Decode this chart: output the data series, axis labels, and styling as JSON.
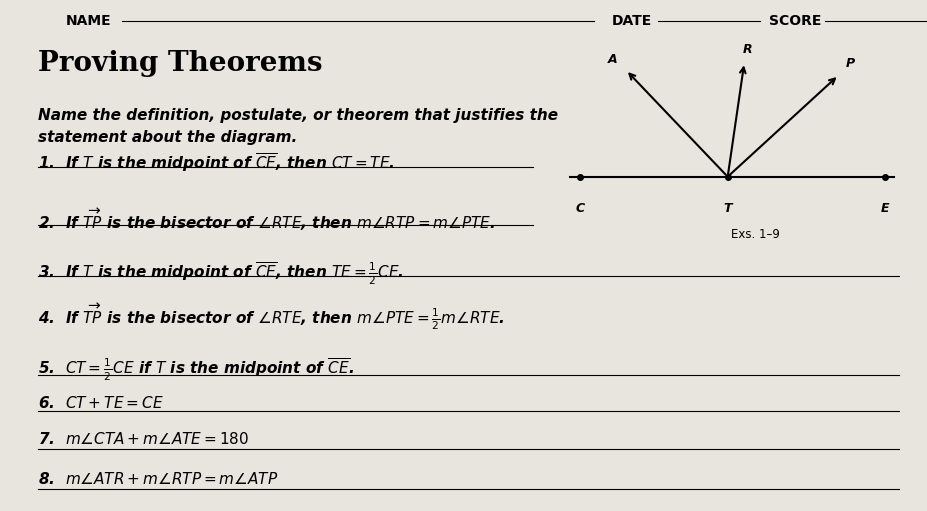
{
  "bg_color": "#e8e4de",
  "title": "Proving Theorems",
  "header_name": "NAME",
  "header_date": "DATE",
  "header_score": "SCORE",
  "instruction": "Name the definition, postulate, or theorem that justifies the\nstatement about the diagram.",
  "items": [
    "1.  If $T$ is the midpoint of $\\overline{CE}$, then $CT = TE$.",
    "2.  If $\\overrightarrow{TP}$ is the bisector of $\\angle RTE$, then $m\\angle RTP = m\\angle PTE$.",
    "3.  If $T$ is the midpoint of $\\overline{CE}$, then $TE = \\frac{1}{2}CE$.",
    "4.  If $\\overrightarrow{TP}$ is the bisector of $\\angle RTE$, then $m\\angle PTE = \\frac{1}{2}m\\angle RTE$.",
    "5.  $CT = \\frac{1}{2}CE$ if $T$ is the midpoint of $\\overline{CE}$.",
    "6.  $CT + TE = CE$",
    "7.  $m\\angle CTA + m\\angle ATE = 180$",
    "8.  $m\\angle ATR + m\\angle RTP = m\\angle ATP$"
  ],
  "exs_label": "Exs. 1–9",
  "title_fontsize": 20,
  "body_fontsize": 11.0,
  "header_fontsize": 10
}
